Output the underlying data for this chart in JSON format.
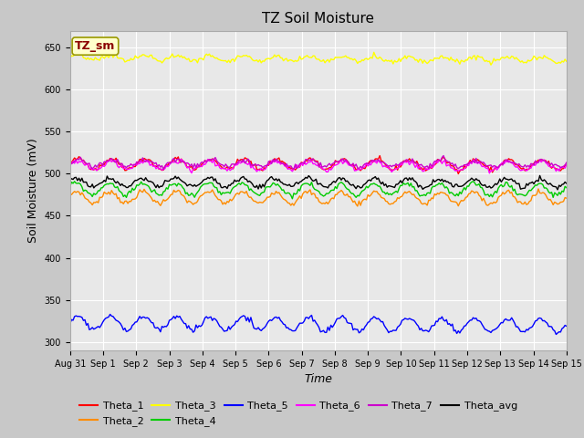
{
  "title": "TZ Soil Moisture",
  "xlabel": "Time",
  "ylabel": "Soil Moisture (mV)",
  "ylim": [
    290,
    670
  ],
  "yticks": [
    300,
    350,
    400,
    450,
    500,
    550,
    600,
    650
  ],
  "n_points": 336,
  "series_order": [
    "Theta_1",
    "Theta_2",
    "Theta_3",
    "Theta_4",
    "Theta_5",
    "Theta_6",
    "Theta_7",
    "Theta_avg"
  ],
  "series": {
    "Theta_1": {
      "color": "#ff0000",
      "base": 512,
      "amp": 6,
      "trend": -0.005,
      "phase": 0.0,
      "seed": 42
    },
    "Theta_2": {
      "color": "#ff8c00",
      "base": 472,
      "amp": 7,
      "trend": -0.003,
      "phase": 0.3,
      "seed": 7
    },
    "Theta_3": {
      "color": "#ffff00",
      "base": 638,
      "amp": 3,
      "trend": -0.008,
      "phase": 0.1,
      "seed": 13
    },
    "Theta_4": {
      "color": "#00cc00",
      "base": 482,
      "amp": 7,
      "trend": -0.003,
      "phase": 0.5,
      "seed": 99
    },
    "Theta_5": {
      "color": "#0000ff",
      "base": 323,
      "amp": 8,
      "trend": -0.01,
      "phase": 0.2,
      "seed": 55
    },
    "Theta_6": {
      "color": "#ff00ff",
      "base": 510,
      "amp": 5,
      "trend": -0.003,
      "phase": 0.15,
      "seed": 21
    },
    "Theta_7": {
      "color": "#cc00cc",
      "base": 513,
      "amp": 4,
      "trend": -0.004,
      "phase": 0.05,
      "seed": 33
    },
    "Theta_avg": {
      "color": "#000000",
      "base": 490,
      "amp": 5,
      "trend": -0.003,
      "phase": 0.4,
      "seed": 77
    }
  },
  "legend_label": "TZ_sm",
  "legend_label_color": "#8b0000",
  "legend_box_facecolor": "#ffffcc",
  "legend_box_edgecolor": "#999900",
  "fig_facecolor": "#c8c8c8",
  "axes_facecolor": "#e8e8e8",
  "grid_color": "#ffffff",
  "tick_fontsize": 7,
  "label_fontsize": 9,
  "title_fontsize": 11,
  "legend_fontsize": 8,
  "linewidth": 1.0,
  "legend_row1": [
    "Theta_1",
    "Theta_2",
    "Theta_3",
    "Theta_4",
    "Theta_5",
    "Theta_6"
  ],
  "legend_row2": [
    "Theta_7",
    "Theta_avg"
  ],
  "xtick_labels": [
    "Aug 31",
    "Sep 1",
    "Sep 2",
    "Sep 3",
    "Sep 4",
    "Sep 5",
    "Sep 6",
    "Sep 7",
    "Sep 8",
    "Sep 9",
    "Sep 10",
    "Sep 11",
    "Sep 12",
    "Sep 13",
    "Sep 14",
    "Sep 15"
  ],
  "xtick_positions": [
    0,
    1,
    2,
    3,
    4,
    5,
    6,
    7,
    8,
    9,
    10,
    11,
    12,
    13,
    14,
    15
  ],
  "xlim": [
    0,
    15
  ]
}
